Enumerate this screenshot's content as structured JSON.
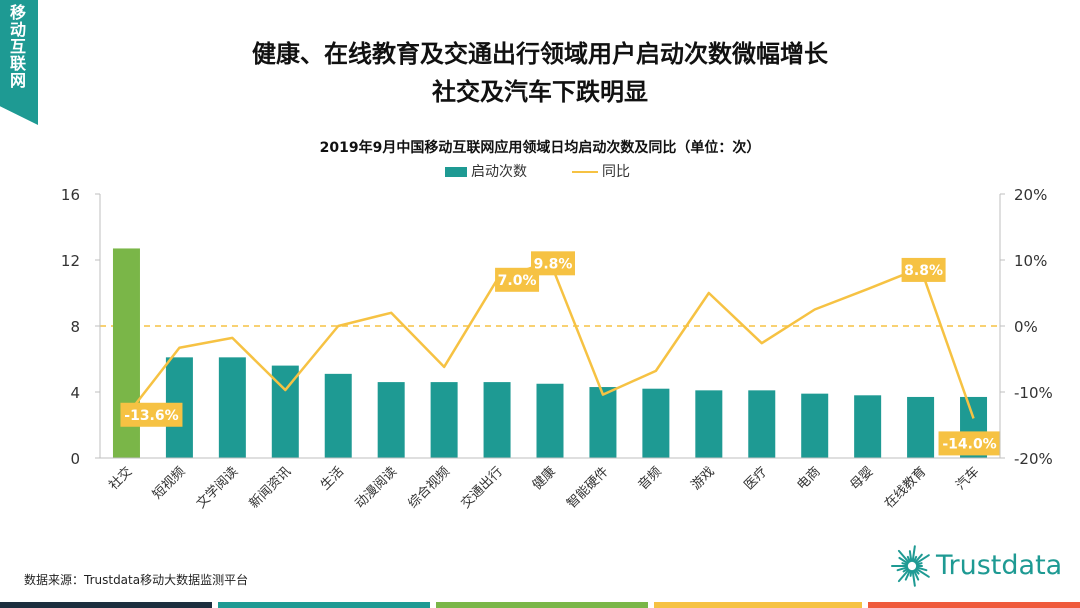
{
  "side_tag": "移动互联网",
  "headline": {
    "line1": "健康、在线教育及交通出行领域用户启动次数微幅增长",
    "line2": "社交及汽车下跌明显"
  },
  "legend": {
    "bar_label": "启动次数",
    "line_label": "同比"
  },
  "source": "数据来源：Trustdata移动大数据监测平台",
  "logo_text": "Trustdata",
  "colors": {
    "bar": "#1e9a93",
    "bar_highlight": "#7ab648",
    "line": "#f6c243",
    "label_bg": "#f6c243",
    "zero_line": "#f6c243",
    "footer": [
      "#1c2e3e",
      "#1e9a93",
      "#7ab648",
      "#f6c243",
      "#ef5a3c"
    ]
  },
  "chart_data": {
    "type": "bar",
    "title": "2019年9月中国移动互联网应用领域日均启动次数及同比（单位：次）",
    "categories": [
      "社交",
      "短视频",
      "文学阅读",
      "新闻资讯",
      "生活",
      "动漫阅读",
      "综合视频",
      "交通出行",
      "健康",
      "智能硬件",
      "音频",
      "游戏",
      "医疗",
      "电商",
      "母婴",
      "在线教育",
      "汽车"
    ],
    "series": [
      {
        "name": "启动次数",
        "type": "bar",
        "axis": "left",
        "values": [
          12.7,
          6.1,
          6.1,
          5.6,
          5.1,
          4.6,
          4.6,
          4.6,
          4.5,
          4.3,
          4.2,
          4.1,
          4.1,
          3.9,
          3.8,
          3.7,
          3.7
        ]
      },
      {
        "name": "同比",
        "type": "line",
        "axis": "right",
        "values": [
          -13.6,
          -3.3,
          -1.8,
          -9.7,
          0.0,
          2.0,
          -6.2,
          7.0,
          9.8,
          -10.4,
          -6.8,
          5.0,
          -2.6,
          2.5,
          5.6,
          8.8,
          -14.0
        ]
      }
    ],
    "highlight_index": 0,
    "left_axis": {
      "ylim": [
        0,
        16
      ],
      "ticks": [
        "0",
        "4",
        "8",
        "12",
        "16"
      ]
    },
    "right_axis": {
      "ylim": [
        -20,
        20
      ],
      "ticks": [
        "-20%",
        "-10%",
        "0%",
        "10%",
        "20%"
      ]
    },
    "data_labels": [
      {
        "index": 0,
        "text": "-13.6%"
      },
      {
        "index": 7,
        "text": "7.0%"
      },
      {
        "index": 8,
        "text": "9.8%"
      },
      {
        "index": 15,
        "text": "8.8%"
      },
      {
        "index": 16,
        "text": "-14.0%"
      }
    ]
  }
}
